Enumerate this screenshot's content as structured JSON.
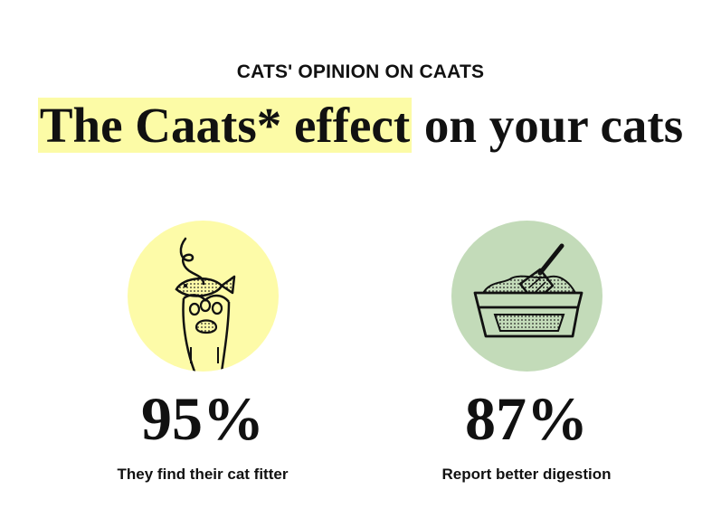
{
  "header": {
    "eyebrow": "CATS' OPINION ON CAATS",
    "title_highlight": "The Caats* effect",
    "title_rest": " on your cats"
  },
  "colors": {
    "highlight": "#fcfba6",
    "yellow_circle": "#fdfba8",
    "green_circle": "#c3dbb9",
    "ink": "#111111"
  },
  "stats": [
    {
      "icon": "cat-paw-with-toy-fish-icon",
      "value": "95%",
      "caption": "They find their cat fitter"
    },
    {
      "icon": "litter-box-with-scoop-icon",
      "value": "87%",
      "caption": "Report better digestion"
    }
  ]
}
